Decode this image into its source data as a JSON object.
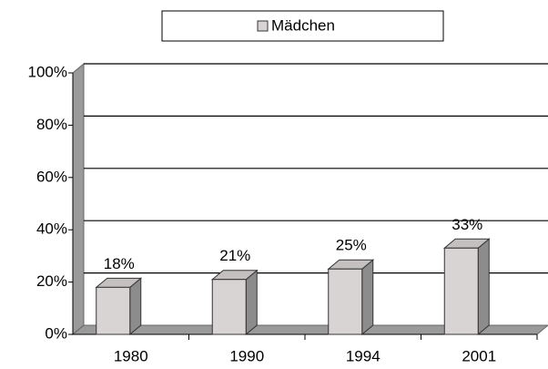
{
  "chart_data": {
    "type": "bar3d",
    "categories": [
      "1980",
      "1990",
      "1994",
      "2001"
    ],
    "series": [
      {
        "name": "Mädchen",
        "color": "#d9d4d4",
        "values": [
          18,
          21,
          25,
          33
        ],
        "value_labels": [
          "18%",
          "21%",
          "25%",
          "33%"
        ]
      }
    ],
    "ylim": [
      0,
      100
    ],
    "yticks": [
      {
        "value": 0,
        "label": "0%"
      },
      {
        "value": 20,
        "label": "20%"
      },
      {
        "value": 40,
        "label": "40%"
      },
      {
        "value": 60,
        "label": "60%"
      },
      {
        "value": 80,
        "label": "80%"
      },
      {
        "value": 100,
        "label": "100%"
      }
    ],
    "grid": true,
    "legend": "top"
  }
}
